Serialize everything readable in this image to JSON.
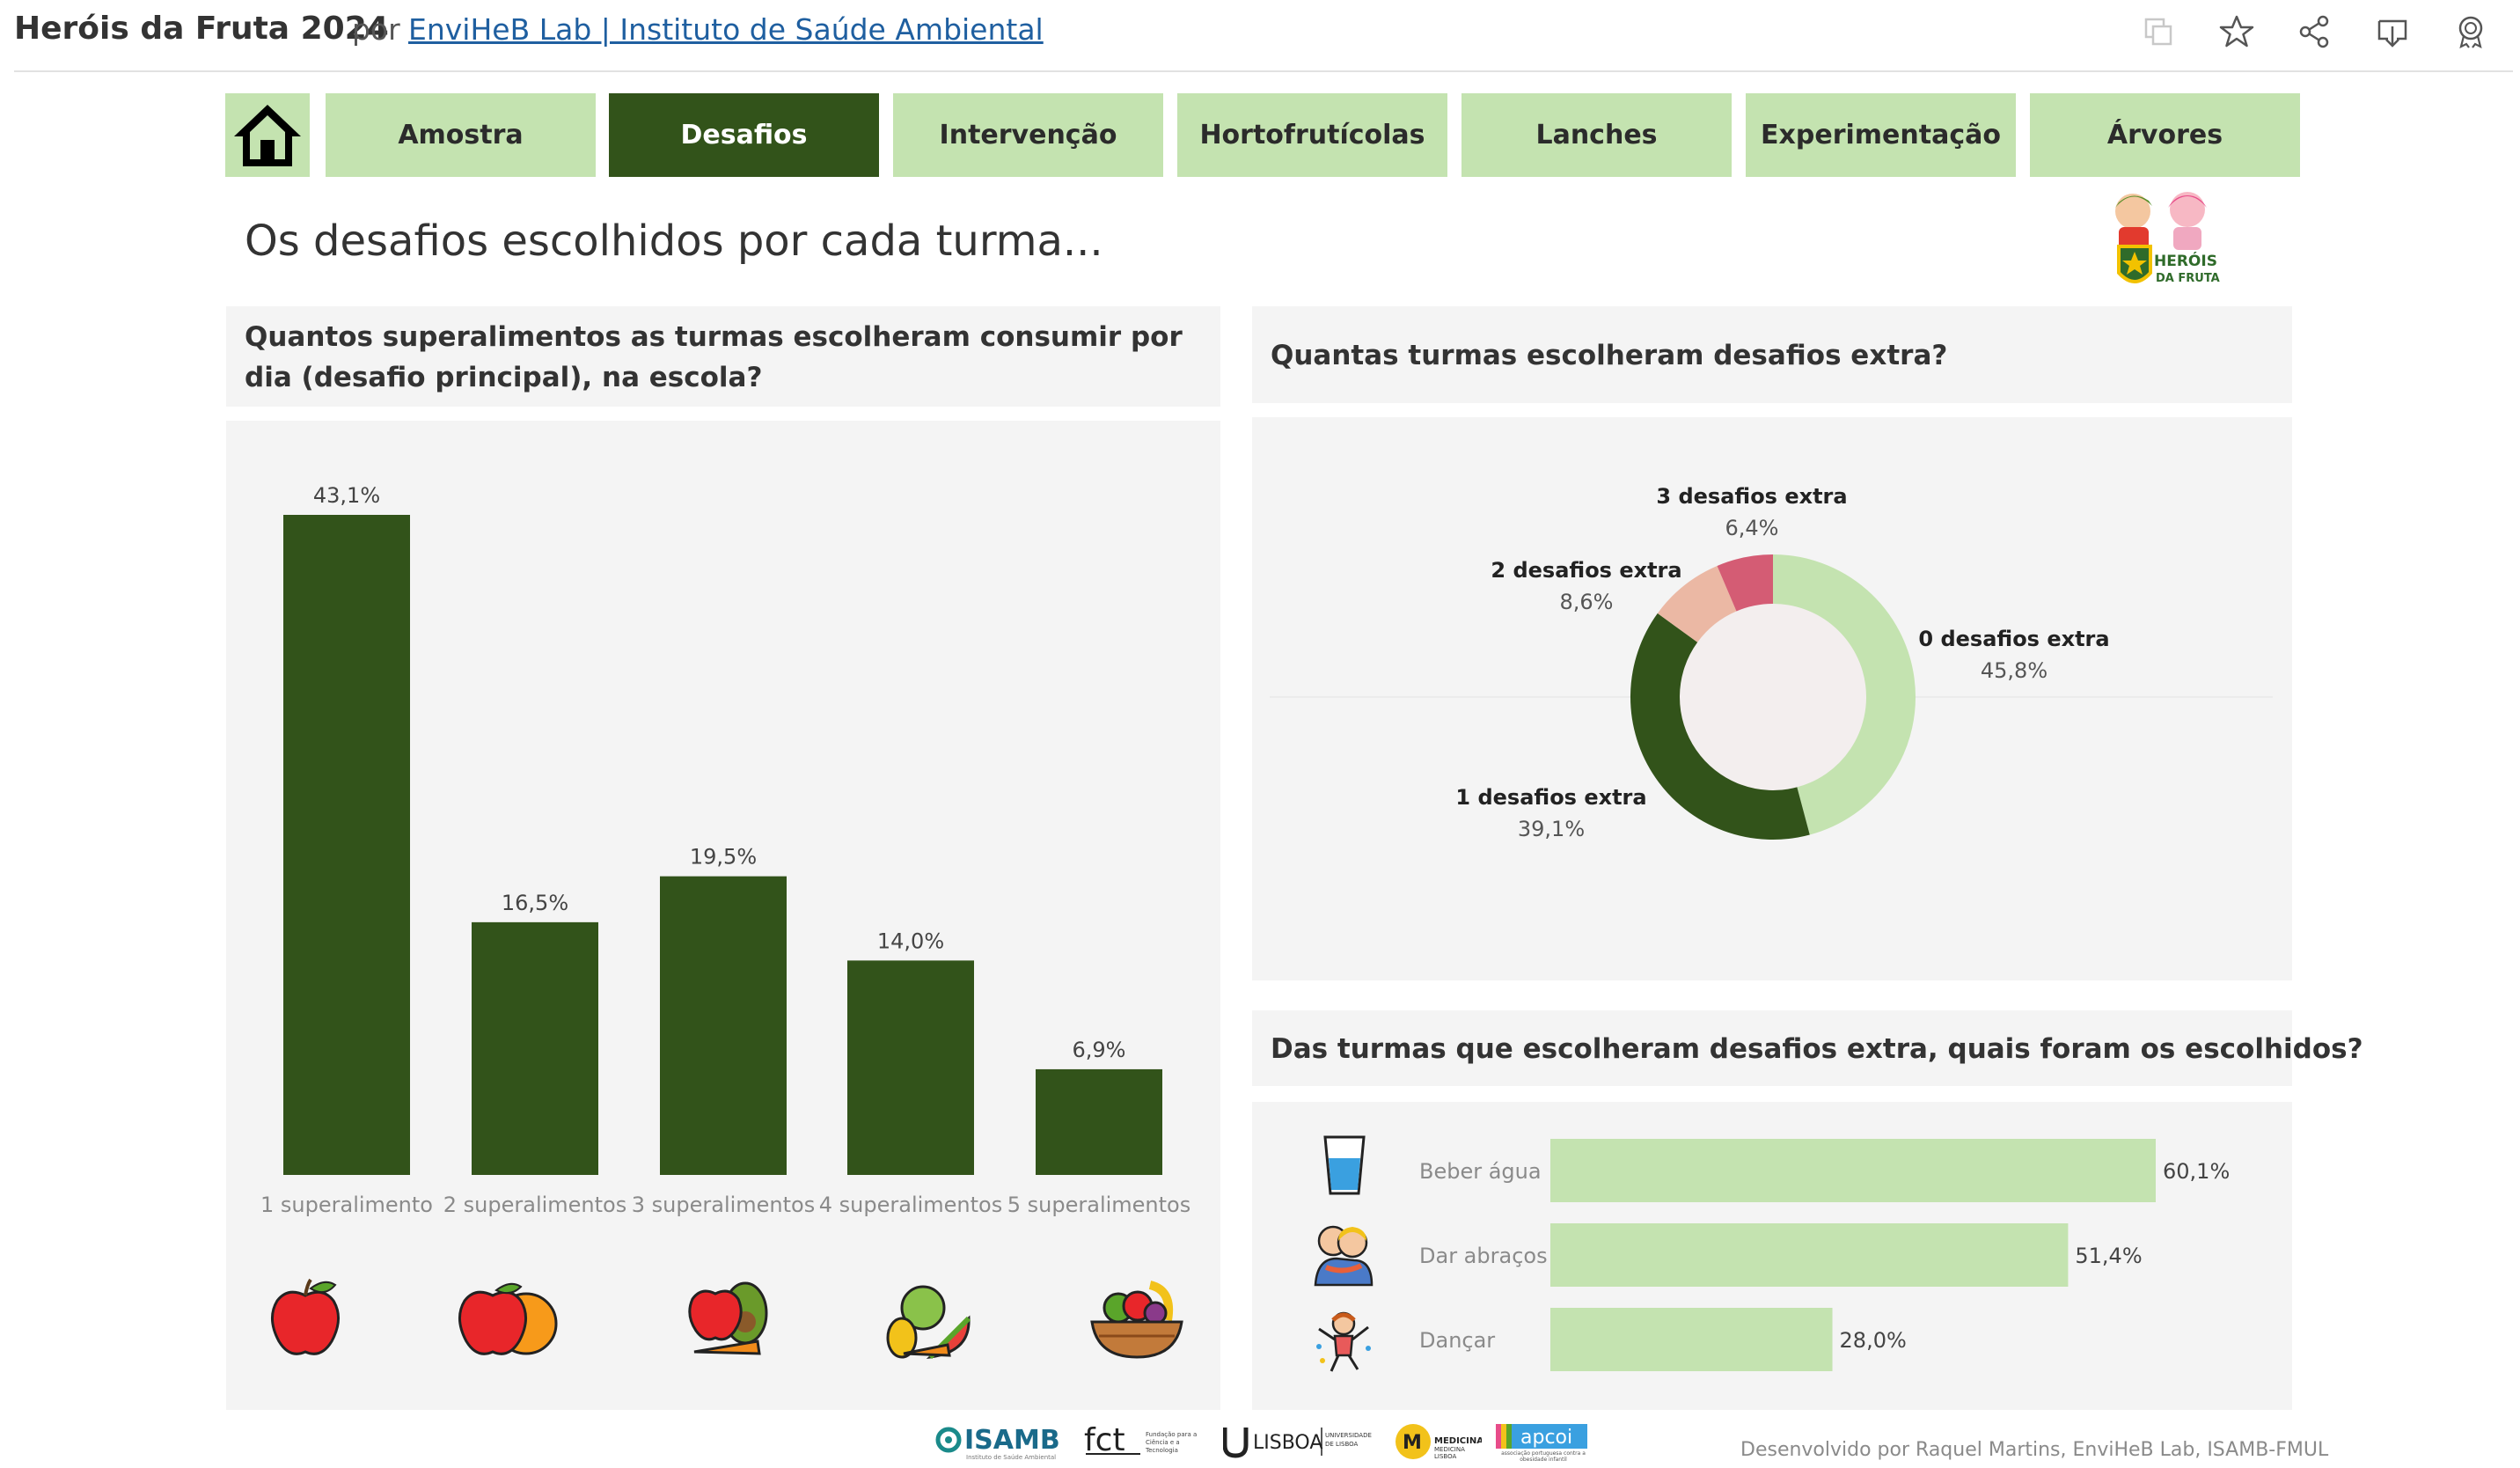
{
  "header": {
    "title": "Heróis da Fruta 2024",
    "by": "por",
    "author": "EnviHeB Lab | Instituto de Saúde Ambiental",
    "icons": [
      "copy-icon",
      "star-icon",
      "share-icon",
      "download-icon",
      "badge-icon"
    ]
  },
  "nav": {
    "home_icon": "home-icon",
    "tabs": [
      "Amostra",
      "Desafios",
      "Intervenção",
      "Hortofrutícolas",
      "Lanches",
      "Experimentação",
      "Árvores"
    ],
    "active": "Desafios"
  },
  "page": {
    "title": "Os desafios escolhidos por cada turma...",
    "mascot_text": "HERÓIS DA FRUTA"
  },
  "panel1": {
    "question": "Quantos superalimentos as turmas escolheram consumir por dia (desafio principal), na escola?",
    "icons": [
      "apple-icon",
      "apple-orange-icon",
      "apple-avocado-carrot-icon",
      "vegetables-icon",
      "fruit-basket-icon"
    ]
  },
  "panel2": {
    "question": "Quantas turmas escolheram desafios extra?"
  },
  "panel3": {
    "question": "Das turmas que escolheram desafios extra, quais foram os escolhidos?",
    "icons": [
      "water-glass-icon",
      "hug-icon",
      "dance-icon"
    ]
  },
  "chart_data": [
    {
      "type": "bar",
      "categories": [
        "1 superalimento",
        "2 superalimentos",
        "3 superalimentos",
        "4 superalimentos",
        "5 superalimentos"
      ],
      "values": [
        43.1,
        16.5,
        19.5,
        14.0,
        6.9
      ],
      "labels": [
        "43,1%",
        "16,5%",
        "19,5%",
        "14,0%",
        "6,9%"
      ],
      "color": "#32531a",
      "ylim": [
        0,
        45
      ]
    },
    {
      "type": "pie",
      "categories": [
        "0 desafios extra",
        "1 desafios extra",
        "2 desafios extra",
        "3 desafios extra"
      ],
      "values": [
        45.8,
        39.1,
        8.6,
        6.4
      ],
      "labels": [
        "45,8%",
        "39,1%",
        "8,6%",
        "6,4%"
      ],
      "colors": [
        "#c4e3b0",
        "#32531a",
        "#ebb8a4",
        "#d45c74"
      ],
      "donut": true
    },
    {
      "type": "bar",
      "orientation": "horizontal",
      "categories": [
        "Beber água",
        "Dar abraços",
        "Dançar"
      ],
      "values": [
        60.1,
        51.4,
        28.0
      ],
      "labels": [
        "60,1%",
        "51,4%",
        "28,0%"
      ],
      "color": "#c4e3b0",
      "xlim": [
        0,
        60.1
      ]
    }
  ],
  "footer": {
    "logos": [
      "ISAMB",
      "fct",
      "LISBOA",
      "MEDICINA",
      "apcoi"
    ],
    "isamb_sub": "Instituto de Saúde Ambiental",
    "fct_sub": "Fundação para a Ciência e a Tecnologia",
    "lisboa_sub": "UNIVERSIDADE DE LISBOA",
    "medicina_sub": "MEDICINA LISBOA",
    "apcoi_sub": "associação portuguesa contra a obesidade infantil",
    "credit": "Desenvolvido por Raquel Martins, EnviHeB Lab, ISAMB-FMUL"
  }
}
